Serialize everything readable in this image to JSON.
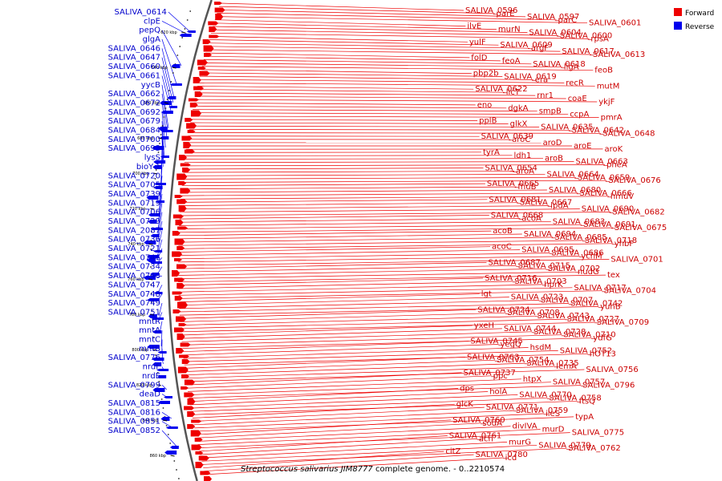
{
  "caption": {
    "species": "Streptococcus salivarius JIM8777",
    "rest": " complete genome. - 0..2210574"
  },
  "legend": [
    {
      "label": "Forward",
      "color": "#ee0000"
    },
    {
      "label": "Reverse",
      "color": "#0000ee"
    }
  ],
  "axis_ticks": [
    "620 kbp",
    "640 kbp",
    "660 kbp",
    "680 kbp",
    "700 kbp",
    "720 kbp",
    "740 kbp",
    "760 kbp",
    "780 kbp",
    "800 kbp",
    "820 kbp",
    "840 kbp",
    "860 kbp"
  ],
  "forward_labels": [
    "SALIVA_0596",
    "parE",
    "SALIVA_0597",
    "parC",
    "SALIVA_0601",
    "ilvE",
    "murN",
    "SALIVA_0604",
    "SALIVA_0600",
    "rpsA",
    "yulF",
    "SALIVA_0609",
    "argF",
    "SALIVA_0617",
    "SALIVA_0613",
    "folD",
    "feoA",
    "SALIVA_0618",
    "ligA",
    "feoB",
    "pbp2b",
    "SALIVA_0619",
    "era",
    "recR",
    "mutM",
    "SALIVA_0622",
    "licT",
    "rnr1",
    "coaE",
    "ykjF",
    "eno",
    "dgkA",
    "smpB",
    "ccpA",
    "pmrA",
    "pplB",
    "glkX",
    "SALIVA_0635",
    "SALIVA_0642",
    "SALIVA_0648",
    "SALIVA_0639",
    "aroC",
    "aroD",
    "aroE",
    "aroK",
    "tyrA",
    "ldh1",
    "aroB",
    "SALIVA_0663",
    "pheA",
    "SALIVA_0654",
    "aroA",
    "SALIVA_0664",
    "SALIVA_0659",
    "SALIVA_0676",
    "SALIVA_0665",
    "fhuB",
    "SALIVA_0680",
    "SALIVA_0666",
    "hmuV",
    "SALIVA_0681",
    "SALIVA_0667",
    "lpdA",
    "SALIVA_0690",
    "SALIVA_0682",
    "SALIVA_0668",
    "acoA",
    "SALIVA_0683",
    "SALIVA_0691",
    "SALIVA_0675",
    "acoB",
    "SALIVA_0694",
    "SALIVA_0685",
    "SALIVA_0718",
    "yhbF",
    "acoC",
    "SALIVA_0695",
    "SALIVA_0686",
    "ychM",
    "SALIVA_0701",
    "SALIVA_0687",
    "SALIVA_0715",
    "SALIVA_0702",
    "nudG",
    "tex",
    "SALIVA_0716",
    "SALIVA_0703",
    "hprK",
    "SALIVA_0717",
    "SALIVA_0704",
    "lgt",
    "SALIVA_0723",
    "SALIVA_0707",
    "SALIVA_0742",
    "yuhB",
    "SALIVA_0724",
    "SALIVA_0708",
    "SALIVA_0743",
    "SALIVA_0727",
    "SALIVA_0709",
    "yxeH",
    "SALIVA_0744",
    "SALIVA_0728",
    "SALIVA_0710",
    "ydfG",
    "SALIVA_0745",
    "yegQ",
    "hsdM",
    "SALIVA_0752",
    "hOT13",
    "SALIVA_0763",
    "SALIVA_0754",
    "SALIVA_0735",
    "lemA",
    "SALIVA_0756",
    "SALIVA_0737",
    "ppc",
    "htpX",
    "SALIVA_0757",
    "SALIVA_0796",
    "dps",
    "holA",
    "SALIVA_0770",
    "SALIVA_0758",
    "ftsQ",
    "glcK",
    "SALIVA_0771",
    "SALIVA_0759",
    "ileS",
    "typA",
    "SALIVA_0760",
    "sodA",
    "divIVA",
    "murD",
    "SALIVA_0775",
    "SALIVA_0761",
    "acn",
    "murG",
    "SALIVA_0779",
    "SALIVA_0762",
    "citZ",
    "SALIVA_0780",
    "icd"
  ],
  "reverse_labels": [
    "SALIVA_0614",
    "clpE",
    "pepQ",
    "glgA",
    "SALIVA_0646",
    "SALIVA_0647",
    "SALIVA_0660",
    "SALIVA_0661",
    "yycB",
    "SALIVA_0662",
    "SALIVA_0672",
    "SALIVA_0692",
    "SALIVA_0679",
    "SALIVA_0684",
    "SALIVA_0700",
    "SALIVA_0693",
    "lysS",
    "bioY-1",
    "SALIVA_0720",
    "SALIVA_0705",
    "SALIVA_0739",
    "SALIVA_0719",
    "SALIVA_0706",
    "SALIVA_0729",
    "SALIVA_2087",
    "SALIVA_0736",
    "SALIVA_0721",
    "SALIVA_0746",
    "SALIVA_0734",
    "SALIVA_0740",
    "SALIVA_0747",
    "SALIVA_0748",
    "SALIVA_0749",
    "SALIVA_0751",
    "mntR",
    "mntA",
    "mntC",
    "mntB",
    "SALIVA_0776",
    "nrdF",
    "nrdE",
    "SALIVA_0799",
    "deaD",
    "SALIVA_0815",
    "SALIVA_0816",
    "SALIVA_0851",
    "SALIVA_0852"
  ]
}
